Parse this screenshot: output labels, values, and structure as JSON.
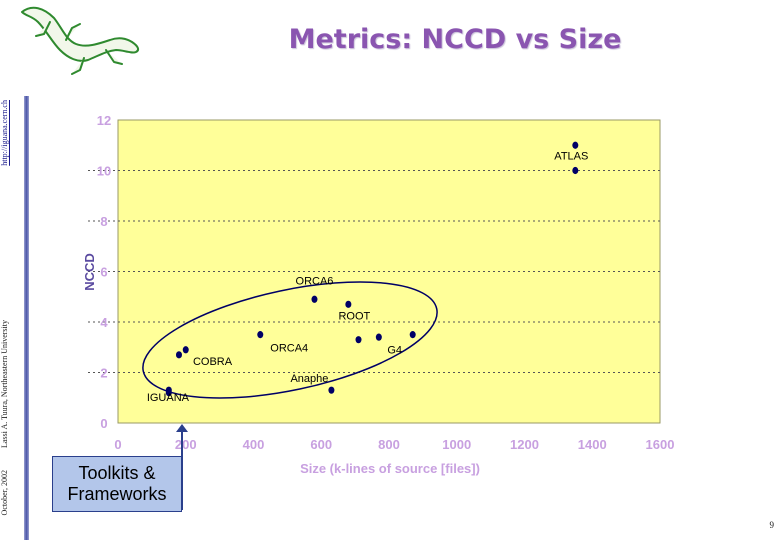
{
  "page": {
    "title": "Metrics: NCCD vs Size",
    "side_url": "http://iguana.cern.ch",
    "side_credit": "Lassi A. Tuura, Northeastern University",
    "side_date": "October, 2002",
    "page_number": "9",
    "callout": "Toolkits &\nFrameworks",
    "logo_icon": "lizard-logo-icon"
  },
  "colors": {
    "plot_bg": "#ffff99",
    "axis_text": "#c8a0e0",
    "title": "#8a55b0",
    "point": "#000066",
    "callout_bg": "#b3c6ea"
  },
  "chart_data": {
    "type": "scatter",
    "xlabel": "Size (k-lines of source [files])",
    "ylabel": "NCCD",
    "xlim": [
      0,
      1600
    ],
    "ylim": [
      0,
      12
    ],
    "x_ticks": [
      "0",
      "200",
      "400",
      "600",
      "800",
      "1000",
      "1200",
      "1400",
      "1600"
    ],
    "y_ticks": [
      "0",
      "2",
      "4",
      "6",
      "8",
      "10",
      "12"
    ],
    "grid": "dotted horizontal",
    "points": [
      {
        "x": 1350,
        "y": 11.0,
        "label": "ATLAS"
      },
      {
        "x": 1350,
        "y": 10.0,
        "label": ""
      },
      {
        "x": 580,
        "y": 4.9,
        "label": "ORCA6"
      },
      {
        "x": 680,
        "y": 4.7,
        "label": "ROOT"
      },
      {
        "x": 420,
        "y": 3.5,
        "label": "ORCA4"
      },
      {
        "x": 710,
        "y": 3.3,
        "label": ""
      },
      {
        "x": 770,
        "y": 3.4,
        "label": ""
      },
      {
        "x": 870,
        "y": 3.5,
        "label": "G4"
      },
      {
        "x": 200,
        "y": 2.9,
        "label": ""
      },
      {
        "x": 180,
        "y": 2.7,
        "label": "COBRA"
      },
      {
        "x": 150,
        "y": 1.3,
        "label": "IGUANA"
      },
      {
        "x": 150,
        "y": 1.2,
        "label": ""
      },
      {
        "x": 630,
        "y": 1.3,
        "label": "Anaphe"
      }
    ]
  }
}
